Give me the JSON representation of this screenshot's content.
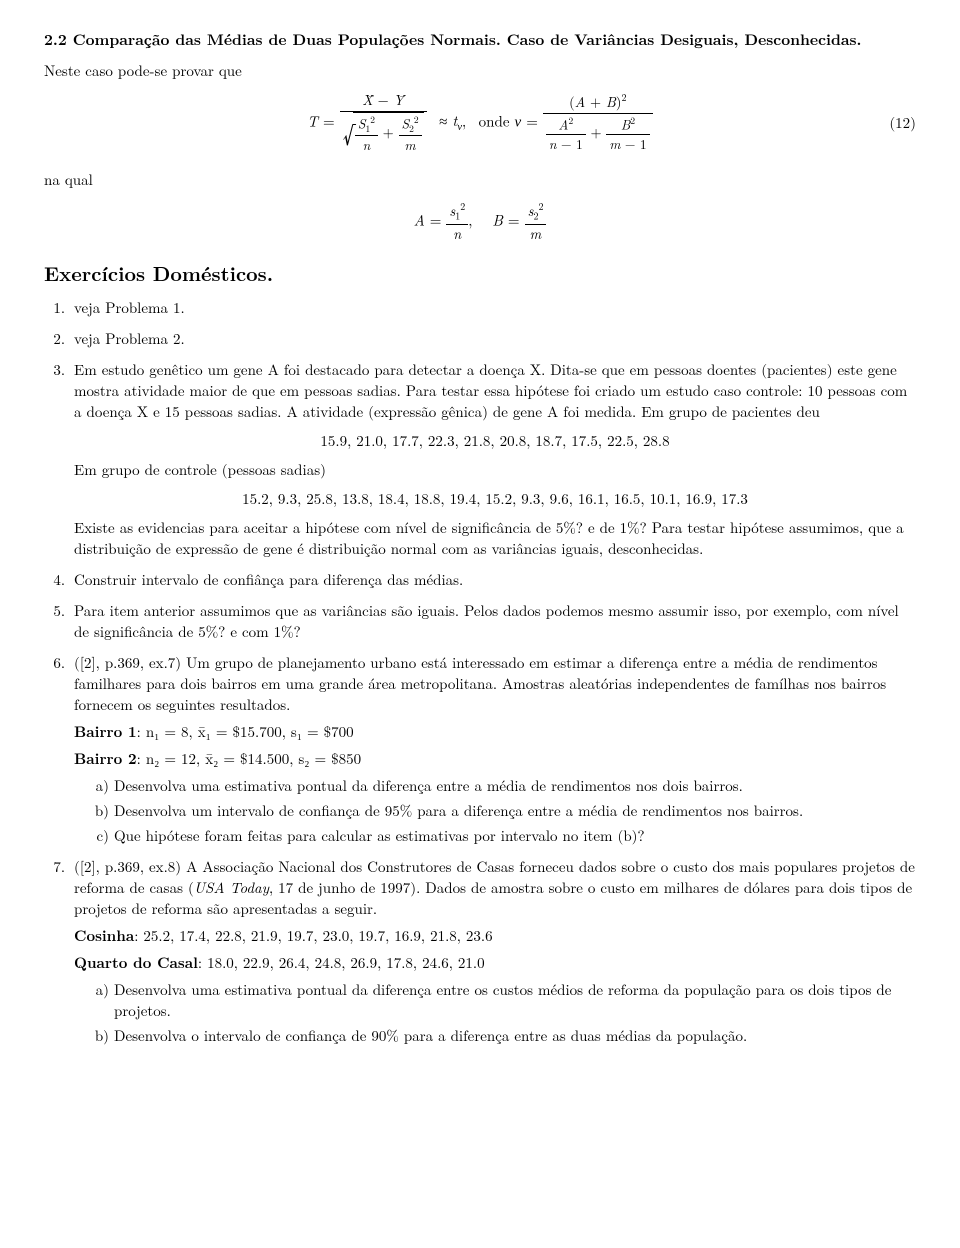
{
  "section_2_2": {
    "title": "2.2 Comparação das Médias de Duas Populações Normais. Caso de Variâncias Desiguais, Desconhecidas.",
    "intro": "Neste caso pode-se provar que",
    "eq12_num": "(12)",
    "na_qual": "na qual"
  },
  "domesticos": {
    "title": "Exercícios Domésticos."
  },
  "ex1": "veja Problema 1.",
  "ex2": "veja Problema 2.",
  "ex3": {
    "p1": "Em estudo genêtico um gene A foi destacado para detectar a doença X. Dita-se que em pessoas doentes (pacientes) este gene mostra atividade maior de que em pessoas sadias. Para testar essa hipótese foi criado um estudo caso controle: 10 pessoas com a doença X e 15 pessoas sadias. A atividade (expressão gênica) de gene A foi medida. Em grupo de pacientes deu",
    "data1": "15.9, 21.0, 17.7, 22.3, 21.8, 20.8, 18.7, 17.5, 22.5, 28.8",
    "p2": "Em grupo de controle (pessoas sadias)",
    "data2": "15.2, 9.3, 25.8, 13.8, 18.4, 18.8, 19.4, 15.2, 9.3, 9.6, 16.1, 16.5, 10.1, 16.9, 17.3",
    "p3": "Existe as evidencias para aceitar a hipótese com nível de significância de 5%? e de 1%? Para testar hipótese assumimos, que a distribuição de expressão de gene é distribuição normal com as variâncias iguais, desconhecidas."
  },
  "ex4": "Construir intervalo de confiânça para diferença das médias.",
  "ex5": "Para item anterior assumimos que as variâncias são iguais. Pelos dados podemos mesmo assumir isso, por exemplo, com nível de significância de 5%? e com 1%?",
  "ex6": {
    "p1": "([2], p.369, ex.7) Um grupo de planejamento urbano está interessado em estimar a diferença entre a média de rendimentos familhares para dois bairros em uma grande área metropolitana. Amostras aleatórias independentes de famílhas nos bairros fornecem os seguintes resultados.",
    "bairro1_label": "Bairro 1",
    "bairro1_vals": ": n₁ = 8,  x̄₁ = $15.700,  s₁ = $700",
    "bairro2_label": "Bairro 2",
    "bairro2_vals": ": n₂ = 12,  x̄₂ = $14.500,  s₂ = $850",
    "a": "Desenvolva uma estimativa pontual da diferença entre a média de rendimentos nos dois bairros.",
    "b": "Desenvolva um intervalo de confiança de 95% para a diferença entre a média de rendimentos nos bairros.",
    "c": "Que hipótese foram feitas para calcular as estimativas por intervalo no item (b)?"
  },
  "ex7": {
    "p1a": "([2], p.369, ex.8) A Associação Nacional dos Construtores de Casas forneceu dados sobre o custo dos mais populares projetos de reforma de casas (",
    "p1_ital": "USA Today",
    "p1b": ", 17 de junho de 1997). Dados de amostra sobre o custo em milhares de dólares para dois tipos de projetos de reforma são apresentadas a seguir.",
    "cosinha_label": "Cosinha",
    "cosinha_vals": ":  25.2, 17.4, 22.8, 21.9, 19.7, 23.0, 19.7, 16.9, 21.8, 23.6",
    "quarto_label": "Quarto do Casal",
    "quarto_vals": ":  18.0, 22.9, 26.4, 24.8, 26.9, 17.8, 24.6, 21.0",
    "a": "Desenvolva uma estimativa pontual da diferença entre os custos médios de reforma da população para os dois tipos de projetos.",
    "b": "Desenvolva o intervalo de confiança de 90% para a diferença entre as duas médias da população."
  }
}
